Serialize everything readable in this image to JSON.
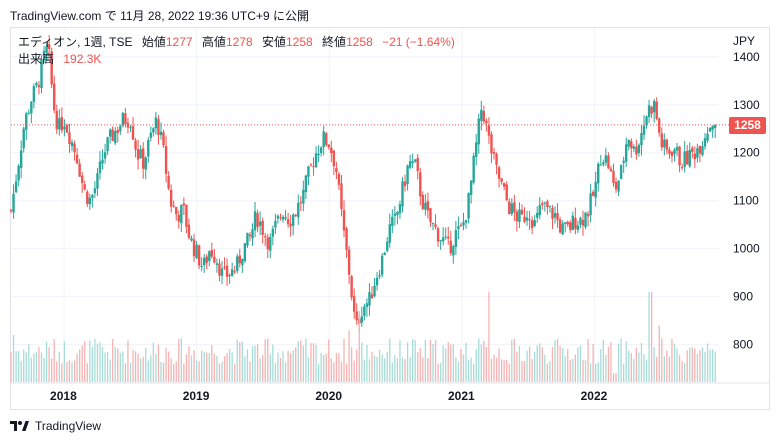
{
  "header": {
    "source": "TradingView.com",
    "suffix": "で 11月 28, 2022 19:36 UTC+9 に公開"
  },
  "legend": {
    "symbol_line": "エディオン, 1週, TSE",
    "open_label": "始値",
    "open": "1277",
    "high_label": "高値",
    "high": "1278",
    "low_label": "安値",
    "low": "1258",
    "close_label": "終値",
    "close": "1258",
    "change": "−21 (−1.64%)",
    "volume_label": "出来高",
    "volume": "192.3K"
  },
  "footer": {
    "brand": "TradingView"
  },
  "colors": {
    "up": "#26a69a",
    "down": "#ef5350",
    "grid": "#f0f3fa",
    "text": "#131722"
  },
  "chart_data": {
    "type": "candlestick",
    "timeframe": "1週",
    "currency": "JPY",
    "last_price": "1258",
    "price_axis": {
      "ticks": [
        800,
        900,
        1000,
        1100,
        1200,
        1300,
        1400
      ],
      "range": [
        720,
        1460
      ]
    },
    "time_axis": {
      "ticks": [
        "2018",
        "2019",
        "2020",
        "2021",
        "2022"
      ],
      "range": [
        2017.6,
        2022.93
      ]
    },
    "close_series": [
      [
        2017.6,
        1080
      ],
      [
        2017.65,
        1170
      ],
      [
        2017.7,
        1260
      ],
      [
        2017.75,
        1310
      ],
      [
        2017.8,
        1340
      ],
      [
        2017.85,
        1400
      ],
      [
        2017.88,
        1420
      ],
      [
        2017.92,
        1300
      ],
      [
        2017.96,
        1250
      ],
      [
        2018.0,
        1270
      ],
      [
        2018.05,
        1230
      ],
      [
        2018.1,
        1190
      ],
      [
        2018.15,
        1120
      ],
      [
        2018.2,
        1100
      ],
      [
        2018.25,
        1140
      ],
      [
        2018.3,
        1200
      ],
      [
        2018.35,
        1230
      ],
      [
        2018.4,
        1250
      ],
      [
        2018.45,
        1270
      ],
      [
        2018.5,
        1270
      ],
      [
        2018.55,
        1200
      ],
      [
        2018.6,
        1180
      ],
      [
        2018.65,
        1230
      ],
      [
        2018.7,
        1270
      ],
      [
        2018.75,
        1200
      ],
      [
        2018.8,
        1100
      ],
      [
        2018.85,
        1070
      ],
      [
        2018.9,
        1080
      ],
      [
        2018.95,
        1020
      ],
      [
        2019.0,
        990
      ],
      [
        2019.05,
        960
      ],
      [
        2019.1,
        1000
      ],
      [
        2019.15,
        980
      ],
      [
        2019.2,
        940
      ],
      [
        2019.25,
        950
      ],
      [
        2019.3,
        960
      ],
      [
        2019.35,
        1000
      ],
      [
        2019.4,
        1020
      ],
      [
        2019.45,
        1070
      ],
      [
        2019.5,
        1040
      ],
      [
        2019.55,
        1010
      ],
      [
        2019.6,
        1050
      ],
      [
        2019.65,
        1080
      ],
      [
        2019.7,
        1060
      ],
      [
        2019.75,
        1080
      ],
      [
        2019.8,
        1110
      ],
      [
        2019.85,
        1160
      ],
      [
        2019.9,
        1200
      ],
      [
        2019.95,
        1230
      ],
      [
        2020.0,
        1220
      ],
      [
        2020.05,
        1170
      ],
      [
        2020.1,
        1050
      ],
      [
        2020.15,
        950
      ],
      [
        2020.2,
        830
      ],
      [
        2020.25,
        880
      ],
      [
        2020.3,
        890
      ],
      [
        2020.35,
        940
      ],
      [
        2020.4,
        980
      ],
      [
        2020.45,
        1040
      ],
      [
        2020.5,
        1060
      ],
      [
        2020.55,
        1120
      ],
      [
        2020.6,
        1180
      ],
      [
        2020.65,
        1170
      ],
      [
        2020.7,
        1100
      ],
      [
        2020.75,
        1060
      ],
      [
        2020.8,
        1040
      ],
      [
        2020.85,
        1020
      ],
      [
        2020.9,
        1000
      ],
      [
        2020.95,
        1030
      ],
      [
        2021.0,
        1040
      ],
      [
        2021.05,
        1100
      ],
      [
        2021.1,
        1200
      ],
      [
        2021.15,
        1300
      ],
      [
        2021.2,
        1230
      ],
      [
        2021.25,
        1170
      ],
      [
        2021.3,
        1130
      ],
      [
        2021.35,
        1090
      ],
      [
        2021.4,
        1070
      ],
      [
        2021.45,
        1060
      ],
      [
        2021.5,
        1080
      ],
      [
        2021.55,
        1050
      ],
      [
        2021.6,
        1090
      ],
      [
        2021.65,
        1080
      ],
      [
        2021.7,
        1070
      ],
      [
        2021.75,
        1040
      ],
      [
        2021.8,
        1040
      ],
      [
        2021.85,
        1060
      ],
      [
        2021.9,
        1060
      ],
      [
        2021.95,
        1080
      ],
      [
        2022.0,
        1120
      ],
      [
        2022.05,
        1200
      ],
      [
        2022.1,
        1180
      ],
      [
        2022.15,
        1120
      ],
      [
        2022.2,
        1160
      ],
      [
        2022.25,
        1240
      ],
      [
        2022.3,
        1200
      ],
      [
        2022.35,
        1240
      ],
      [
        2022.4,
        1290
      ],
      [
        2022.45,
        1300
      ],
      [
        2022.5,
        1220
      ],
      [
        2022.55,
        1200
      ],
      [
        2022.6,
        1210
      ],
      [
        2022.65,
        1180
      ],
      [
        2022.7,
        1190
      ],
      [
        2022.75,
        1200
      ],
      [
        2022.8,
        1220
      ],
      [
        2022.85,
        1250
      ],
      [
        2022.9,
        1270
      ],
      [
        2022.92,
        1258
      ]
    ],
    "volume_peaks": [
      [
        2017.62,
        820
      ],
      [
        2018.12,
        790
      ],
      [
        2019.55,
        780
      ],
      [
        2020.15,
        830
      ],
      [
        2020.22,
        870
      ],
      [
        2021.2,
        910
      ],
      [
        2021.35,
        760
      ],
      [
        2022.15,
        740
      ],
      [
        2022.42,
        910
      ],
      [
        2022.48,
        840
      ],
      [
        2022.88,
        790
      ]
    ]
  }
}
